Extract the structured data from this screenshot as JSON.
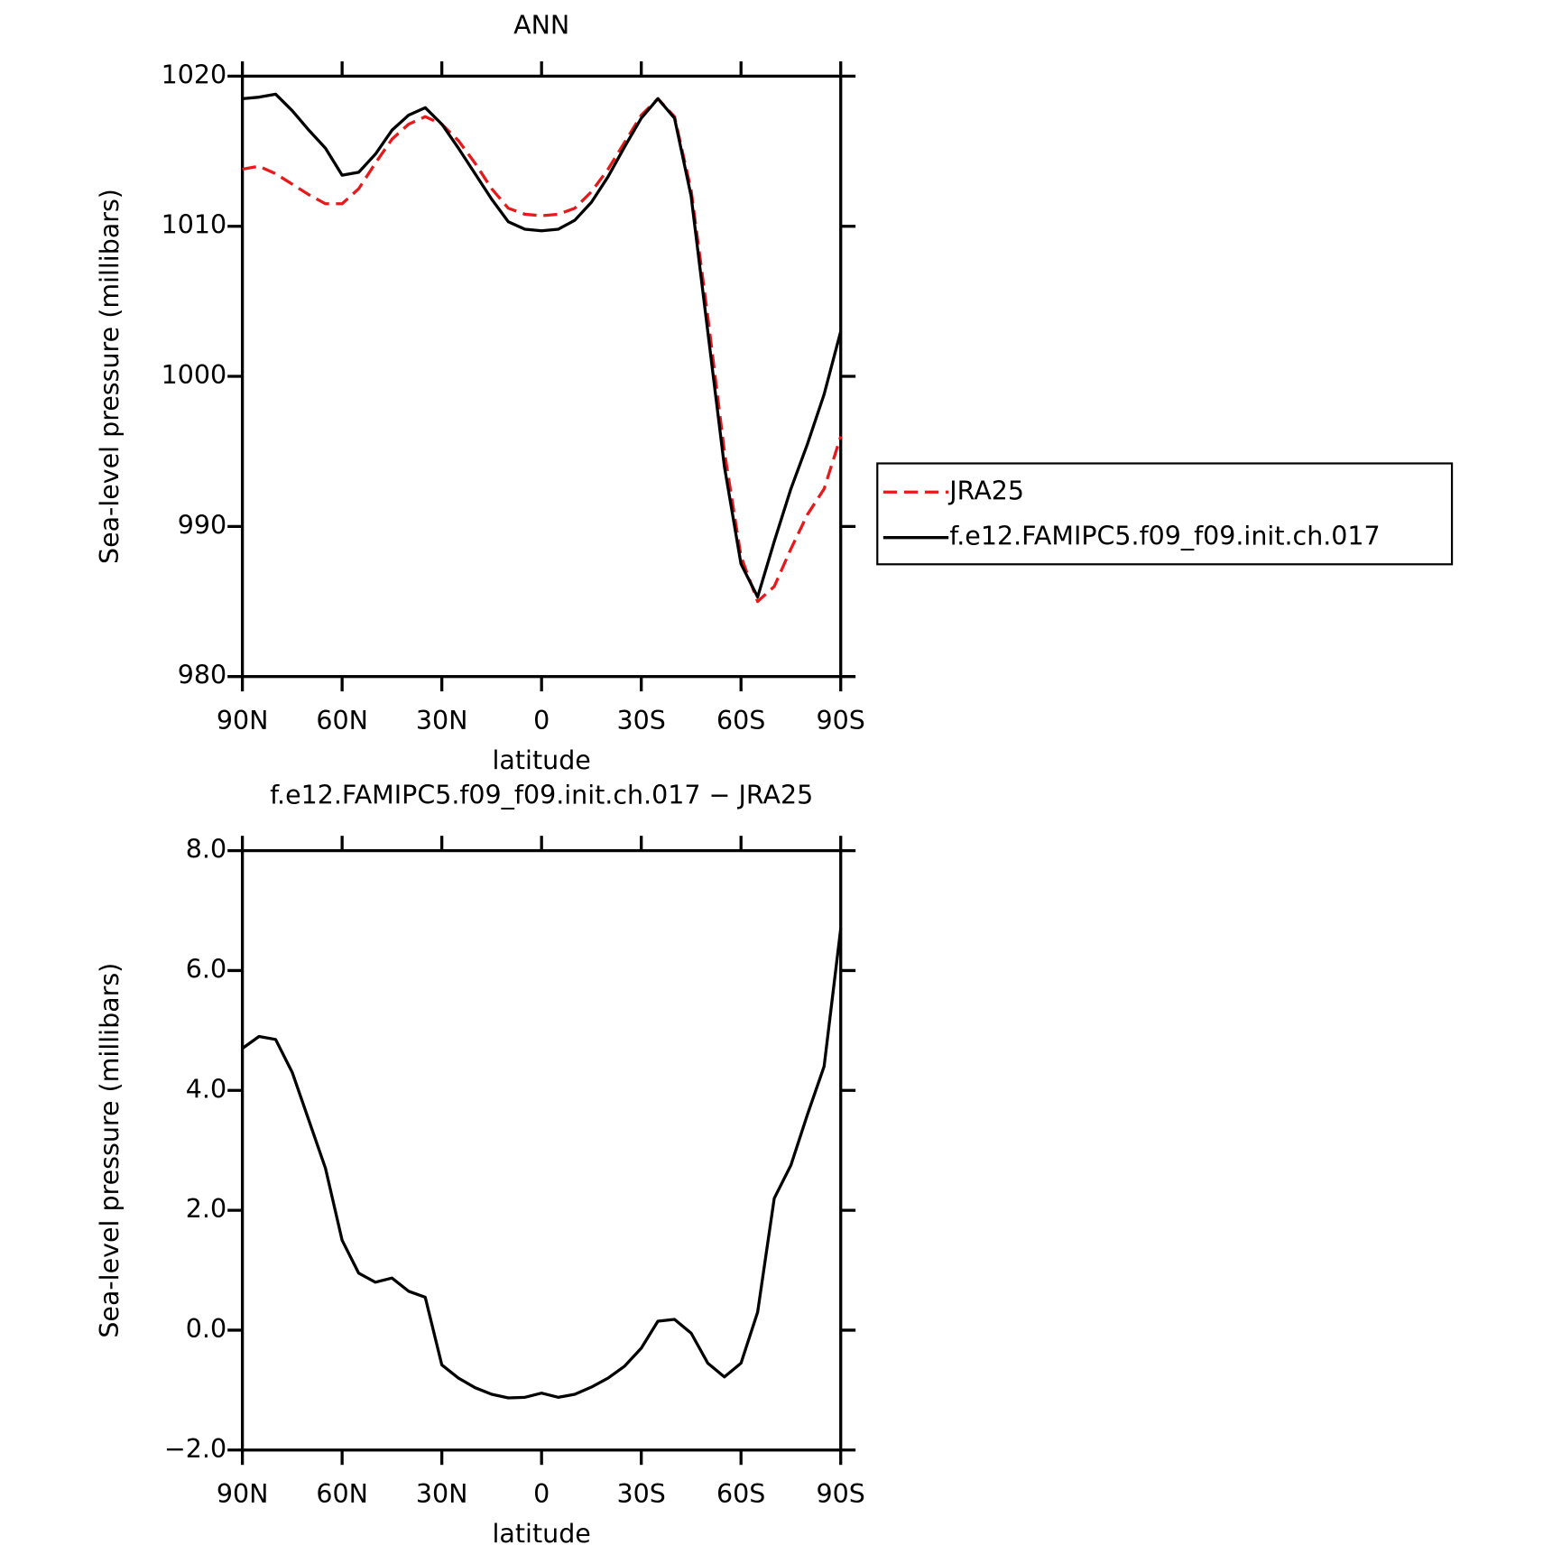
{
  "chart_data": [
    {
      "type": "line",
      "title": "ANN",
      "xlabel": "latitude",
      "ylabel": "Sea-level pressure (millibars)",
      "x": [
        90,
        85,
        80,
        75,
        70,
        65,
        60,
        55,
        50,
        45,
        40,
        35,
        30,
        25,
        20,
        15,
        10,
        5,
        0,
        -5,
        -10,
        -15,
        -20,
        -25,
        -30,
        -35,
        -40,
        -45,
        -50,
        -55,
        -60,
        -65,
        -70,
        -75,
        -80,
        -85,
        -90
      ],
      "xlim": [
        90,
        -90
      ],
      "xticks": [
        {
          "value": 90,
          "label": "90N"
        },
        {
          "value": 60,
          "label": "60N"
        },
        {
          "value": 30,
          "label": "30N"
        },
        0,
        {
          "value": -30,
          "label": "30S"
        },
        {
          "value": -60,
          "label": "60S"
        },
        {
          "value": -90,
          "label": "90S"
        }
      ],
      "ylim": [
        980,
        1020
      ],
      "yticks": [
        980,
        990,
        1000,
        1010,
        1020
      ],
      "legend": "right",
      "series": [
        {
          "name": "JRA25",
          "color": "#e8191b",
          "dashed": true,
          "values": [
            1013.8,
            1014,
            1013.5,
            1012.8,
            1012.1,
            1011.5,
            1011.5,
            1012.5,
            1014.2,
            1015.8,
            1016.8,
            1017.3,
            1016.8,
            1015.7,
            1014.2,
            1012.5,
            1011.2,
            1010.8,
            1010.7,
            1010.8,
            1011.2,
            1012.3,
            1013.8,
            1015.6,
            1017.4,
            1018.5,
            1017.3,
            1012.4,
            1004,
            995,
            988,
            985,
            986,
            988.5,
            990.8,
            992.5,
            996
          ]
        },
        {
          "name": "f.e12.FAMIPC5.f09_f09.init.ch.017",
          "color": "#000000",
          "dashed": false,
          "values": [
            1018.5,
            1018.6,
            1018.8,
            1017.7,
            1016.4,
            1015.2,
            1013.4,
            1013.6,
            1014.8,
            1016.4,
            1017.4,
            1017.9,
            1016.8,
            1015.2,
            1013.5,
            1011.8,
            1010.3,
            1009.8,
            1009.7,
            1009.8,
            1010.4,
            1011.6,
            1013.3,
            1015.3,
            1017.2,
            1018.5,
            1017.2,
            1012,
            1003,
            994,
            987.5,
            985.3,
            989,
            992.5,
            995.5,
            998.8,
            1003
          ]
        }
      ]
    },
    {
      "type": "line",
      "title": "f.e12.FAMIPC5.f09_f09.init.ch.017 − JRA25",
      "xlabel": "latitude",
      "ylabel": "Sea-level pressure (millibars)",
      "x": [
        90,
        85,
        80,
        75,
        70,
        65,
        60,
        55,
        50,
        45,
        40,
        35,
        30,
        25,
        20,
        15,
        10,
        5,
        0,
        -5,
        -10,
        -15,
        -20,
        -25,
        -30,
        -35,
        -40,
        -45,
        -50,
        -55,
        -60,
        -65,
        -70,
        -75,
        -80,
        -85,
        -90
      ],
      "xlim": [
        90,
        -90
      ],
      "xticks": [
        {
          "value": 90,
          "label": "90N"
        },
        {
          "value": 60,
          "label": "60N"
        },
        {
          "value": 30,
          "label": "30N"
        },
        0,
        {
          "value": -30,
          "label": "30S"
        },
        {
          "value": -60,
          "label": "60S"
        },
        {
          "value": -90,
          "label": "90S"
        }
      ],
      "ylim": [
        -2,
        8
      ],
      "yticks": [
        {
          "value": -2,
          "label": "−2.0"
        },
        {
          "value": 0,
          "label": "0.0"
        },
        {
          "value": 2,
          "label": "2.0"
        },
        {
          "value": 4,
          "label": "4.0"
        },
        {
          "value": 6,
          "label": "6.0"
        },
        {
          "value": 8,
          "label": "8.0"
        }
      ],
      "series": [
        {
          "color": "#000000",
          "dashed": false,
          "values": [
            4.7,
            4.9,
            4.85,
            4.3,
            3.5,
            2.7,
            1.5,
            0.95,
            0.8,
            0.87,
            0.65,
            0.55,
            -0.58,
            -0.8,
            -0.96,
            -1.07,
            -1.13,
            -1.12,
            -1.05,
            -1.12,
            -1.07,
            -0.95,
            -0.8,
            -0.6,
            -0.3,
            0.15,
            0.18,
            -0.05,
            -0.55,
            -0.78,
            -0.55,
            0.3,
            2.2,
            2.75,
            3.6,
            4.4,
            6.7
          ]
        }
      ]
    }
  ]
}
